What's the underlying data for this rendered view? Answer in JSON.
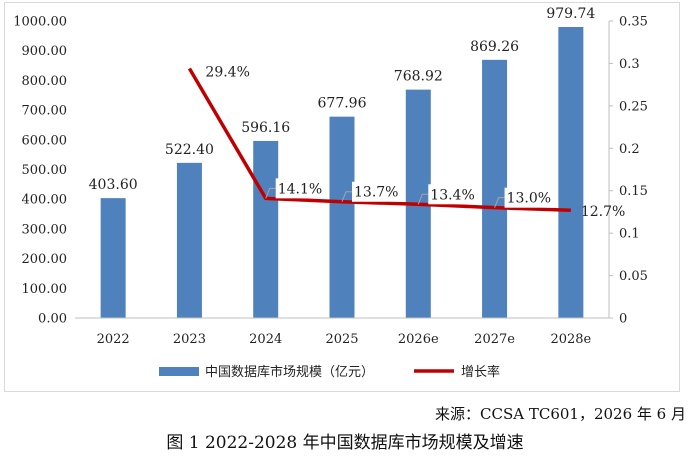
{
  "chart_data": {
    "type": "bar",
    "categories": [
      "2022",
      "2023",
      "2024",
      "2025",
      "2026e",
      "2027e",
      "2028e"
    ],
    "series": [
      {
        "name": "中国数据库市场规模（亿元）",
        "chart": "bar",
        "axis": "left",
        "color": "#4f81bd",
        "values": [
          403.6,
          522.4,
          596.16,
          677.96,
          768.92,
          869.26,
          979.74
        ],
        "labels": [
          "403.60",
          "522.40",
          "596.16",
          "677.96",
          "768.92",
          "869.26",
          "979.74"
        ]
      },
      {
        "name": "增长率",
        "chart": "line",
        "axis": "right",
        "color": "#c00000",
        "values": [
          null,
          0.294,
          0.141,
          0.137,
          0.134,
          0.13,
          0.127
        ],
        "labels": [
          "",
          "29.4%",
          "14.1%",
          "13.7%",
          "13.4%",
          "13.0%",
          "12.7%"
        ]
      }
    ],
    "y_left": {
      "ylim": [
        0,
        1000
      ],
      "ticks": [
        "0.00",
        "100.00",
        "200.00",
        "300.00",
        "400.00",
        "500.00",
        "600.00",
        "700.00",
        "800.00",
        "900.00",
        "1000.00"
      ]
    },
    "y_right": {
      "ylim": [
        0,
        0.35
      ],
      "ticks": [
        "0",
        "0.05",
        "0.1",
        "0.15",
        "0.2",
        "0.25",
        "0.3",
        "0.35"
      ]
    },
    "grid": false,
    "legend": "bottom"
  },
  "source": "来源：CCSA TC601，2026 年 6 月",
  "caption": "图  1 2022-2028 年中国数据库市场规模及增速"
}
